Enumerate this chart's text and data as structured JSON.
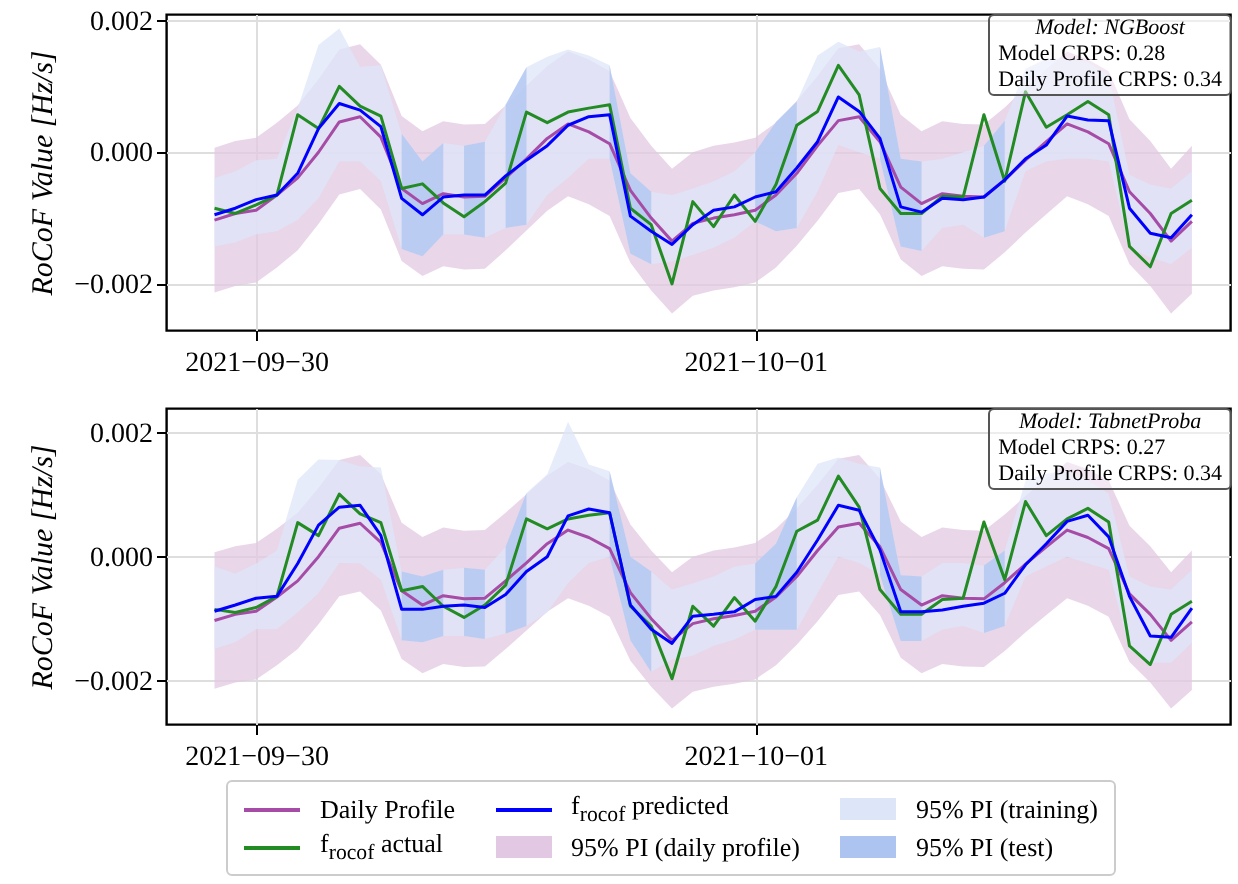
{
  "chart_data": [
    {
      "type": "line",
      "ylabel": "RoCoF Value [Hz/s]",
      "annotations": [
        "Model: NGBoost",
        "Model CRPS: 0.28",
        "Daily Profile CRPS: 0.34"
      ],
      "x": [
        "2021-09-29T22:00",
        "2021-09-29T23:00",
        "2021-09-30T00:00",
        "2021-09-30T01:00",
        "2021-09-30T02:00",
        "2021-09-30T03:00",
        "2021-09-30T04:00",
        "2021-09-30T05:00",
        "2021-09-30T06:00",
        "2021-09-30T07:00",
        "2021-09-30T08:00",
        "2021-09-30T09:00",
        "2021-09-30T10:00",
        "2021-09-30T11:00",
        "2021-09-30T12:00",
        "2021-09-30T13:00",
        "2021-09-30T14:00",
        "2021-09-30T15:00",
        "2021-09-30T16:00",
        "2021-09-30T17:00",
        "2021-09-30T18:00",
        "2021-09-30T19:00",
        "2021-09-30T20:00",
        "2021-09-30T21:00",
        "2021-09-30T22:00",
        "2021-09-30T23:00",
        "2021-10-01T00:00",
        "2021-10-01T01:00",
        "2021-10-01T02:00",
        "2021-10-01T03:00",
        "2021-10-01T04:00",
        "2021-10-01T05:00",
        "2021-10-01T06:00",
        "2021-10-01T07:00",
        "2021-10-01T08:00",
        "2021-10-01T09:00",
        "2021-10-01T10:00",
        "2021-10-01T11:00",
        "2021-10-01T12:00",
        "2021-10-01T13:00",
        "2021-10-01T14:00",
        "2021-10-01T15:00",
        "2021-10-01T16:00",
        "2021-10-01T17:00",
        "2021-10-01T18:00",
        "2021-10-01T19:00",
        "2021-10-01T20:00",
        "2021-10-01T21:00"
      ],
      "xlim": [
        "2021-09-29T19:40",
        "2021-10-01T22:50"
      ],
      "xticks": [
        {
          "value": "2021-09-30",
          "label": "2021−09−30"
        },
        {
          "value": "2021-10-01",
          "label": "2021−10−01"
        }
      ],
      "ylim": [
        -0.0027,
        0.0021
      ],
      "yticks": [
        {
          "value": -0.002,
          "label": "−0.002"
        },
        {
          "value": 0,
          "label": "0.000"
        },
        {
          "value": 0.002,
          "label": "0.002"
        }
      ],
      "grid": true,
      "series": [
        {
          "type": "line",
          "color": "#a64ca6",
          "values": [
            -0.00103,
            -0.00093,
            -0.00088,
            -0.00065,
            -0.00039,
            0,
            0.00046,
            0.00054,
            0.00023,
            -0.00055,
            -0.00078,
            -0.00063,
            -0.00068,
            -0.00067,
            -0.00039,
            -0.0001,
            0.00021,
            0.00043,
            0.00031,
            0.00013,
            -0.00058,
            -0.001,
            -0.00135,
            -0.00108,
            -0.001,
            -0.00095,
            -0.00088,
            -0.00065,
            -0.00032,
            0.0001,
            0.00048,
            0.00054,
            0.00016,
            -0.00053,
            -0.00078,
            -0.00063,
            -0.00067,
            -0.00068,
            -0.00042,
            -0.00012,
            0.00016,
            0.00043,
            0.00031,
            0.00013,
            -0.0006,
            -0.00093,
            -0.00135,
            -0.00105
          ]
        },
        {
          "type": "line",
          "color": "#238b23",
          "values": [
            -0.00085,
            -0.00093,
            -0.0008,
            -0.00065,
            0.00057,
            0.00036,
            0.001,
            0.0007,
            0.00055,
            -0.00055,
            -0.00048,
            -0.00077,
            -0.00098,
            -0.00075,
            -0.00047,
            0.00061,
            0.00045,
            0.00061,
            0.00067,
            0.00072,
            -0.00085,
            -0.0011,
            -0.002,
            -0.00075,
            -0.00113,
            -0.00065,
            -0.00105,
            -0.00049,
            0.00041,
            0.00062,
            0.00132,
            0.00087,
            -0.00055,
            -0.00093,
            -0.00093,
            -0.00067,
            -0.00068,
            0.00057,
            -0.00044,
            0.00092,
            0.00038,
            0.00057,
            0.00077,
            0.00057,
            -0.00143,
            -0.00174,
            -0.00093,
            -0.00073
          ]
        },
        {
          "type": "line",
          "color": "#0000ff",
          "values": [
            -0.00095,
            -0.00085,
            -0.00072,
            -0.00065,
            -0.00032,
            0.00036,
            0.00074,
            0.00064,
            0.00039,
            -0.0007,
            -0.00095,
            -0.00068,
            -0.00065,
            -0.00065,
            -0.00036,
            -0.00012,
            0.0001,
            0.00041,
            0.00054,
            0.00057,
            -0.00097,
            -0.0012,
            -0.0014,
            -0.0011,
            -0.00088,
            -0.00083,
            -0.00068,
            -0.0006,
            -0.00024,
            0.00016,
            0.00084,
            0.00062,
            0.00021,
            -0.00083,
            -0.00091,
            -0.0007,
            -0.00072,
            -0.00068,
            -0.00042,
            -0.0001,
            0.00011,
            0.00055,
            0.00049,
            0.00048,
            -0.00085,
            -0.00123,
            -0.0013,
            -0.00095
          ]
        },
        {
          "type": "area",
          "color": "#e2c8e2",
          "values": [
            null,
            null,
            null,
            null,
            null,
            null,
            null,
            null,
            null,
            null,
            null,
            null,
            null,
            null,
            null,
            null,
            null,
            null,
            null,
            null,
            null,
            null,
            null,
            null,
            null,
            null,
            null,
            null,
            null,
            null,
            null,
            null,
            null,
            null,
            null,
            null,
            null,
            null,
            null,
            null,
            null,
            null,
            null,
            null,
            null,
            null,
            null,
            null
          ],
          "upper": [
            7e-05,
            0.00017,
            0.00022,
            0.00045,
            0.00071,
            0.00111,
            0.00156,
            0.00164,
            0.00133,
            0.00055,
            0.00032,
            0.00047,
            0.00042,
            0.00043,
            0.00071,
            0.00101,
            0.00131,
            0.00153,
            0.00141,
            0.00123,
            0.00052,
            0.0001,
            -0.00025,
            0,
            0.0001,
            0.00015,
            0.00022,
            0.00045,
            0.00078,
            0.00116,
            0.00158,
            0.00164,
            0.00126,
            0.00057,
            0.00032,
            0.00047,
            0.00043,
            0.00042,
            0.00068,
            0.00098,
            0.00126,
            0.00153,
            0.00141,
            0.00123,
            0.0005,
            0.00017,
            -0.00025,
            0.0001
          ],
          "lower": [
            -0.00213,
            -0.00203,
            -0.00198,
            -0.00175,
            -0.00149,
            -0.00109,
            -0.00064,
            -0.00056,
            -0.00087,
            -0.00165,
            -0.00188,
            -0.00173,
            -0.00178,
            -0.00177,
            -0.00149,
            -0.00119,
            -0.00089,
            -0.00067,
            -0.00079,
            -0.00097,
            -0.00168,
            -0.0021,
            -0.00245,
            -0.00218,
            -0.0021,
            -0.00205,
            -0.00198,
            -0.00175,
            -0.00142,
            -0.00104,
            -0.00062,
            -0.00056,
            -0.00094,
            -0.00163,
            -0.00188,
            -0.00173,
            -0.00177,
            -0.00178,
            -0.00152,
            -0.00122,
            -0.00094,
            -0.00067,
            -0.00079,
            -0.00097,
            -0.0017,
            -0.00203,
            -0.00245,
            -0.00215
          ]
        },
        {
          "type": "area",
          "color": "#dde6f8",
          "values": [
            null,
            null,
            null,
            null,
            null,
            null,
            null,
            null,
            null,
            null,
            null,
            null,
            null,
            null,
            null,
            null,
            null,
            null,
            null,
            null,
            null,
            null,
            null,
            null,
            null,
            null,
            null,
            null,
            null,
            null,
            null,
            null,
            null,
            null,
            null,
            null,
            null,
            null,
            null,
            null,
            null,
            null,
            null,
            null,
            null,
            null,
            null,
            null
          ],
          "upper": [
            -0.00039,
            -0.00029,
            -0.00012,
            -0.0001,
            0.00067,
            0.00163,
            0.00188,
            0.0013,
            0.00132,
            0.00028,
            -0.00014,
            0.00014,
            0.0001,
            0.00016,
            0.00072,
            0.00129,
            0.00145,
            0.00156,
            0.00147,
            0.00132,
            -0.00032,
            -0.0006,
            -0.00065,
            -0.00055,
            -0.00044,
            -0.00029,
            0,
            0.00046,
            0.00077,
            0.00147,
            0.00168,
            0.00153,
            0.0016,
            -0.0001,
            -0.00014,
            -0.0001,
            0,
            0.0001,
            0.00048,
            0.00127,
            0.00142,
            0.00142,
            0.00137,
            0.00117,
            -0.00034,
            -0.00049,
            -0.00055,
            -0.00029
          ],
          "lower": [
            -0.00143,
            -0.00137,
            -0.00125,
            -0.0012,
            -0.00103,
            -0.0007,
            -0.00014,
            -0.00014,
            -0.00044,
            -0.00147,
            -0.00158,
            -0.00125,
            -0.00125,
            -0.0013,
            -0.00115,
            -0.0011,
            -0.00065,
            -0.00039,
            -0.0001,
            -0.0001,
            -0.00154,
            -0.0017,
            -0.00166,
            -0.00156,
            -0.00145,
            -0.0013,
            -0.00105,
            -0.0012,
            -0.00115,
            -0.0006,
            0.00011,
            0,
            -0.0001,
            -0.00143,
            -0.0015,
            -0.00115,
            -0.0011,
            -0.0013,
            -0.0012,
            -0.00029,
            -0.00014,
            -0.0001,
            -0.0001,
            -0.00014,
            -0.00145,
            -0.0016,
            -0.0017,
            -0.00145
          ]
        },
        {
          "type": "area",
          "color": "#adc4f0",
          "x": [
            "2021-09-30T07:00",
            "2021-09-30T08:00",
            "2021-09-30T09:00",
            "2021-09-30T09:30",
            "2021-09-30T10:00",
            "2021-09-30T11:00",
            "2021-09-30T11:30",
            "2021-09-30T12:00",
            "2021-09-30T13:00",
            "2021-09-30T13:30",
            "2021-09-30T17:00",
            "2021-09-30T18:00",
            "2021-09-30T19:00",
            "2021-09-30T19:30",
            "2021-10-01T00:00",
            "2021-10-01T01:00",
            "2021-10-01T02:00",
            "2021-10-01T02:30",
            "2021-10-01T06:00",
            "2021-10-01T07:00",
            "2021-10-01T08:00",
            "2021-10-01T08:30",
            "2021-10-01T11:00",
            "2021-10-01T12:00"
          ],
          "values": [
            null,
            null,
            null,
            null,
            null,
            null,
            null,
            null,
            null,
            null,
            null,
            null,
            null,
            null,
            null,
            null,
            null,
            null,
            null,
            null,
            null,
            null,
            null,
            null
          ],
          "upper": [
            0.00028,
            -0.00014,
            0.00014,
            null,
            0.0001,
            0.00016,
            null,
            0.00072,
            0.00129,
            null,
            0.00132,
            -0.00032,
            -0.0006,
            null,
            0,
            0.00046,
            0.00077,
            null,
            0.0016,
            -0.0001,
            -0.00014,
            null,
            0.0001,
            0.00048
          ],
          "lower": [
            -0.00147,
            -0.00158,
            -0.00125,
            null,
            -0.00125,
            -0.0013,
            null,
            -0.00115,
            -0.0011,
            null,
            -0.0001,
            -0.00154,
            -0.0017,
            null,
            -0.00105,
            -0.0012,
            -0.00115,
            null,
            -0.0001,
            -0.00143,
            -0.0015,
            null,
            -0.0013,
            -0.0012
          ]
        }
      ]
    },
    {
      "type": "line",
      "ylabel": "RoCoF Value [Hz/s]",
      "annotations": [
        "Model: TabnetProba",
        "Model CRPS: 0.27",
        "Daily Profile CRPS: 0.34"
      ],
      "x": [
        "2021-09-29T22:00",
        "2021-09-29T23:00",
        "2021-09-30T00:00",
        "2021-09-30T01:00",
        "2021-09-30T02:00",
        "2021-09-30T03:00",
        "2021-09-30T04:00",
        "2021-09-30T05:00",
        "2021-09-30T06:00",
        "2021-09-30T07:00",
        "2021-09-30T08:00",
        "2021-09-30T09:00",
        "2021-09-30T10:00",
        "2021-09-30T11:00",
        "2021-09-30T12:00",
        "2021-09-30T13:00",
        "2021-09-30T14:00",
        "2021-09-30T15:00",
        "2021-09-30T16:00",
        "2021-09-30T17:00",
        "2021-09-30T18:00",
        "2021-09-30T19:00",
        "2021-09-30T20:00",
        "2021-09-30T21:00",
        "2021-09-30T22:00",
        "2021-09-30T23:00",
        "2021-10-01T00:00",
        "2021-10-01T01:00",
        "2021-10-01T02:00",
        "2021-10-01T03:00",
        "2021-10-01T04:00",
        "2021-10-01T05:00",
        "2021-10-01T06:00",
        "2021-10-01T07:00",
        "2021-10-01T08:00",
        "2021-10-01T09:00",
        "2021-10-01T10:00",
        "2021-10-01T11:00",
        "2021-10-01T12:00",
        "2021-10-01T13:00",
        "2021-10-01T14:00",
        "2021-10-01T15:00",
        "2021-10-01T16:00",
        "2021-10-01T17:00",
        "2021-10-01T18:00",
        "2021-10-01T19:00",
        "2021-10-01T20:00",
        "2021-10-01T21:00"
      ],
      "xlim": [
        "2021-09-29T19:40",
        "2021-10-01T22:50"
      ],
      "xticks": [
        {
          "value": "2021-09-30",
          "label": "2021−09−30"
        },
        {
          "value": "2021-10-01",
          "label": "2021−10−01"
        }
      ],
      "ylim": [
        -0.0027,
        0.0024
      ],
      "yticks": [
        {
          "value": -0.002,
          "label": "−0.002"
        },
        {
          "value": 0,
          "label": "0.000"
        },
        {
          "value": 0.002,
          "label": "0.002"
        }
      ],
      "grid": true,
      "legend": "bottom",
      "series": [
        {
          "name": "Daily Profile",
          "type": "line",
          "color": "#a64ca6",
          "values": [
            -0.00103,
            -0.00093,
            -0.00088,
            -0.00065,
            -0.00039,
            0,
            0.00046,
            0.00054,
            0.00023,
            -0.00055,
            -0.00078,
            -0.00063,
            -0.00068,
            -0.00067,
            -0.00039,
            -0.0001,
            0.00021,
            0.00043,
            0.00031,
            0.00013,
            -0.00058,
            -0.001,
            -0.00135,
            -0.00108,
            -0.001,
            -0.00095,
            -0.00088,
            -0.00065,
            -0.00032,
            0.0001,
            0.00048,
            0.00054,
            0.00016,
            -0.00053,
            -0.00078,
            -0.00063,
            -0.00067,
            -0.00068,
            -0.00042,
            -0.00012,
            0.00016,
            0.00043,
            0.00031,
            0.00013,
            -0.0006,
            -0.00093,
            -0.00135,
            -0.00105
          ]
        },
        {
          "name": "f$_{rocof}$ actual",
          "type": "line",
          "color": "#238b23",
          "values": [
            -0.00085,
            -0.0009,
            -0.00082,
            -0.00064,
            0.00055,
            0.00034,
            0.00101,
            0.00069,
            0.00055,
            -0.00055,
            -0.00048,
            -0.0008,
            -0.00098,
            -0.00078,
            -0.00046,
            0.00061,
            0.00045,
            0.00061,
            0.00067,
            0.00071,
            -0.0008,
            -0.00112,
            -0.00197,
            -0.0008,
            -0.00112,
            -0.00066,
            -0.00104,
            -0.00048,
            0.00041,
            0.00059,
            0.0013,
            0.0008,
            -0.00053,
            -0.00093,
            -0.00093,
            -0.00069,
            -0.00067,
            0.00056,
            -0.00037,
            0.00089,
            0.00034,
            0.00061,
            0.00078,
            0.00056,
            -0.00144,
            -0.00174,
            -0.00093,
            -0.00072
          ]
        },
        {
          "name": "f$_{rocof}$ predicted",
          "type": "line",
          "color": "#0000ff",
          "values": [
            -0.00088,
            -0.00078,
            -0.00067,
            -0.00064,
            -0.00011,
            0.00051,
            0.0008,
            0.00083,
            0.00034,
            -0.00085,
            -0.00085,
            -0.0008,
            -0.00078,
            -0.00082,
            -0.00061,
            -0.00024,
            0,
            0.00066,
            0.00077,
            0.00071,
            -0.00078,
            -0.00117,
            -0.0014,
            -0.00096,
            -0.00093,
            -0.00089,
            -0.00069,
            -0.00064,
            -0.00025,
            0.00027,
            0.00083,
            0.00075,
            0.00011,
            -0.00089,
            -0.00089,
            -0.00086,
            -0.0008,
            -0.00075,
            -0.00059,
            -0.00013,
            0.00021,
            0.00057,
            0.00067,
            0.00032,
            -0.00064,
            -0.00128,
            -0.0013,
            -0.00083
          ]
        },
        {
          "name": "95% PI (daily profile)",
          "type": "area",
          "color": "#e2c8e2",
          "values": [
            null,
            null,
            null,
            null,
            null,
            null,
            null,
            null,
            null,
            null,
            null,
            null,
            null,
            null,
            null,
            null,
            null,
            null,
            null,
            null,
            null,
            null,
            null,
            null,
            null,
            null,
            null,
            null,
            null,
            null,
            null,
            null,
            null,
            null,
            null,
            null,
            null,
            null,
            null,
            null,
            null,
            null,
            null,
            null,
            null,
            null,
            null,
            null
          ],
          "upper": [
            7e-05,
            0.00017,
            0.00022,
            0.00045,
            0.00071,
            0.00111,
            0.00156,
            0.00164,
            0.00133,
            0.00055,
            0.00032,
            0.00047,
            0.00042,
            0.00043,
            0.00071,
            0.00101,
            0.00131,
            0.00153,
            0.00141,
            0.00123,
            0.00052,
            0.0001,
            -0.00025,
            0,
            0.0001,
            0.00015,
            0.00022,
            0.00045,
            0.00078,
            0.00116,
            0.00158,
            0.00164,
            0.00126,
            0.00057,
            0.00032,
            0.00047,
            0.00043,
            0.00042,
            0.00068,
            0.00098,
            0.00126,
            0.00153,
            0.00141,
            0.00123,
            0.0005,
            0.00017,
            -0.00025,
            0.0001
          ],
          "lower": [
            -0.00213,
            -0.00203,
            -0.00198,
            -0.00175,
            -0.00149,
            -0.00109,
            -0.00064,
            -0.00056,
            -0.00087,
            -0.00165,
            -0.00188,
            -0.00173,
            -0.00178,
            -0.00177,
            -0.00149,
            -0.00119,
            -0.00089,
            -0.00067,
            -0.00079,
            -0.00097,
            -0.00168,
            -0.0021,
            -0.00245,
            -0.00218,
            -0.0021,
            -0.00205,
            -0.00198,
            -0.00175,
            -0.00142,
            -0.00104,
            -0.00062,
            -0.00056,
            -0.00094,
            -0.00163,
            -0.00188,
            -0.00173,
            -0.00177,
            -0.00178,
            -0.00152,
            -0.00122,
            -0.00094,
            -0.00067,
            -0.00079,
            -0.00097,
            -0.0017,
            -0.00203,
            -0.00245,
            -0.00215
          ]
        },
        {
          "name": "95% PI (training)",
          "type": "area",
          "color": "#dde6f8",
          "values": [
            null,
            null,
            null,
            null,
            null,
            null,
            null,
            null,
            null,
            null,
            null,
            null,
            null,
            null,
            null,
            null,
            null,
            null,
            null,
            null,
            null,
            null,
            null,
            null,
            null,
            null,
            null,
            null,
            null,
            null,
            null,
            null,
            null,
            null,
            null,
            null,
            null,
            null,
            null,
            null,
            null,
            null,
            null,
            null,
            null,
            null,
            null,
            null
          ],
          "upper": [
            -0.00016,
            -0.00027,
            -0.00011,
            0.0001,
            0.00124,
            0.00157,
            0.00156,
            0.00146,
            0.00144,
            -0.00024,
            -0.00032,
            -0.00021,
            -0.00018,
            -0.00021,
            0.00016,
            0.00103,
            0.00133,
            0.00218,
            0.00149,
            0.00138,
            0,
            -0.00024,
            -0.00053,
            -0.00043,
            -0.00032,
            -0.00016,
            -0.00011,
            0.00021,
            0.00096,
            0.0015,
            0.0016,
            0.0015,
            0.00144,
            -0.0003,
            -0.00032,
            -0.0001,
            -0.0001,
            -0.00014,
            0.0001,
            0.00123,
            0.00134,
            0.00139,
            0.00123,
            0.00102,
            -0.00032,
            -0.00048,
            -0.00053,
            -0.00021
          ],
          "lower": [
            -0.00149,
            -0.00138,
            -0.00117,
            -0.00117,
            -0.0009,
            -0.00059,
            -0.0001,
            -0.00011,
            -0.00037,
            -0.00135,
            -0.00138,
            -0.00128,
            -0.00128,
            -0.00133,
            -0.00124,
            -0.00112,
            -0.0009,
            -0.00043,
            -0.0001,
            0,
            -0.00135,
            -0.00186,
            -0.00166,
            -0.0016,
            -0.00144,
            -0.00134,
            -0.00118,
            -0.00118,
            -0.00118,
            -0.00059,
            0,
            -0.0001,
            -0.00029,
            -0.00136,
            -0.00136,
            -0.00118,
            -0.00112,
            -0.00123,
            -0.00112,
            -0.00032,
            -0.00016,
            0,
            -0.00011,
            -0.00021,
            -0.0015,
            -0.00171,
            -0.00171,
            -0.00139
          ]
        },
        {
          "name": "95% PI (test)",
          "type": "area",
          "color": "#adc4f0",
          "x": [
            "2021-09-30T07:00",
            "2021-09-30T08:00",
            "2021-09-30T09:00",
            "2021-09-30T09:30",
            "2021-09-30T10:00",
            "2021-09-30T11:00",
            "2021-09-30T11:30",
            "2021-09-30T12:00",
            "2021-09-30T13:00",
            "2021-09-30T13:30",
            "2021-09-30T17:00",
            "2021-09-30T18:00",
            "2021-09-30T19:00",
            "2021-09-30T19:30",
            "2021-10-01T00:00",
            "2021-10-01T01:00",
            "2021-10-01T02:00",
            "2021-10-01T02:30",
            "2021-10-01T06:00",
            "2021-10-01T07:00",
            "2021-10-01T08:00",
            "2021-10-01T08:30",
            "2021-10-01T11:00",
            "2021-10-01T12:00"
          ],
          "values": [
            null,
            null,
            null,
            null,
            null,
            null,
            null,
            null,
            null,
            null,
            null,
            null,
            null,
            null,
            null,
            null,
            null,
            null,
            null,
            null,
            null,
            null,
            null,
            null
          ],
          "upper": [
            -0.00024,
            -0.00032,
            -0.00021,
            null,
            -0.00018,
            -0.00021,
            null,
            0.00016,
            0.00103,
            null,
            0.00138,
            0,
            -0.00024,
            null,
            -0.00011,
            0.00021,
            0.00096,
            null,
            0.00144,
            -0.0003,
            -0.00032,
            null,
            -0.00014,
            0.0001
          ],
          "lower": [
            -0.00135,
            -0.00138,
            -0.00128,
            null,
            -0.00128,
            -0.00133,
            null,
            -0.00124,
            -0.00112,
            null,
            0,
            -0.00135,
            -0.00186,
            null,
            -0.00118,
            -0.00118,
            -0.00118,
            null,
            -0.00029,
            -0.00136,
            -0.00136,
            null,
            -0.00123,
            -0.00112
          ]
        }
      ]
    }
  ]
}
